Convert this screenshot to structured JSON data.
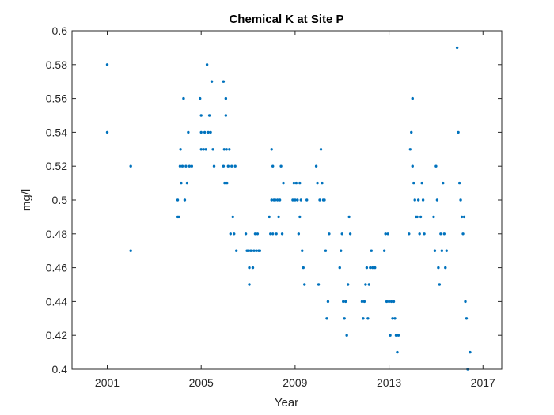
{
  "chart_data": {
    "type": "scatter",
    "title": "Chemical K at Site P",
    "xlabel": "Year",
    "ylabel": "mg/l",
    "xlim": [
      1999.5,
      2017.8
    ],
    "ylim": [
      0.4,
      0.6
    ],
    "xticks": [
      2001,
      2005,
      2009,
      2013,
      2017
    ],
    "yticks": [
      0.4,
      0.42,
      0.44,
      0.46,
      0.48,
      0.5,
      0.52,
      0.54,
      0.56,
      0.58,
      0.6
    ],
    "ytick_labels": [
      "0.4",
      "0.42",
      "0.44",
      "0.46",
      "0.48",
      "0.5",
      "0.52",
      "0.54",
      "0.56",
      "0.58",
      "0.6"
    ],
    "grid": false,
    "marker_color": "#0072BD",
    "series": [
      {
        "points": [
          [
            2001.0,
            0.58
          ],
          [
            2001.0,
            0.54
          ],
          [
            2002.0,
            0.52
          ],
          [
            2002.0,
            0.47
          ],
          [
            2004.0,
            0.5
          ],
          [
            2004.0,
            0.49
          ],
          [
            2004.05,
            0.49
          ],
          [
            2004.1,
            0.52
          ],
          [
            2004.12,
            0.53
          ],
          [
            2004.15,
            0.51
          ],
          [
            2004.2,
            0.52
          ],
          [
            2004.25,
            0.56
          ],
          [
            2004.3,
            0.5
          ],
          [
            2004.35,
            0.52
          ],
          [
            2004.4,
            0.51
          ],
          [
            2004.45,
            0.54
          ],
          [
            2004.5,
            0.52
          ],
          [
            2004.6,
            0.52
          ],
          [
            2004.95,
            0.56
          ],
          [
            2005.0,
            0.55
          ],
          [
            2005.0,
            0.54
          ],
          [
            2005.0,
            0.53
          ],
          [
            2005.1,
            0.53
          ],
          [
            2005.15,
            0.54
          ],
          [
            2005.2,
            0.53
          ],
          [
            2005.25,
            0.58
          ],
          [
            2005.3,
            0.54
          ],
          [
            2005.35,
            0.55
          ],
          [
            2005.4,
            0.54
          ],
          [
            2005.45,
            0.57
          ],
          [
            2005.5,
            0.53
          ],
          [
            2005.55,
            0.52
          ],
          [
            2005.95,
            0.57
          ],
          [
            2005.95,
            0.52
          ],
          [
            2005.98,
            0.53
          ],
          [
            2006.0,
            0.51
          ],
          [
            2006.05,
            0.56
          ],
          [
            2006.05,
            0.55
          ],
          [
            2006.08,
            0.53
          ],
          [
            2006.1,
            0.51
          ],
          [
            2006.15,
            0.52
          ],
          [
            2006.2,
            0.53
          ],
          [
            2006.25,
            0.48
          ],
          [
            2006.3,
            0.52
          ],
          [
            2006.35,
            0.49
          ],
          [
            2006.4,
            0.48
          ],
          [
            2006.45,
            0.52
          ],
          [
            2006.5,
            0.47
          ],
          [
            2006.9,
            0.48
          ],
          [
            2006.95,
            0.47
          ],
          [
            2007.0,
            0.47
          ],
          [
            2007.05,
            0.46
          ],
          [
            2007.05,
            0.45
          ],
          [
            2007.1,
            0.47
          ],
          [
            2007.15,
            0.47
          ],
          [
            2007.2,
            0.46
          ],
          [
            2007.25,
            0.47
          ],
          [
            2007.3,
            0.48
          ],
          [
            2007.35,
            0.47
          ],
          [
            2007.4,
            0.48
          ],
          [
            2007.45,
            0.47
          ],
          [
            2007.5,
            0.47
          ],
          [
            2007.9,
            0.49
          ],
          [
            2007.95,
            0.48
          ],
          [
            2008.0,
            0.53
          ],
          [
            2008.0,
            0.5
          ],
          [
            2008.05,
            0.52
          ],
          [
            2008.05,
            0.48
          ],
          [
            2008.1,
            0.5
          ],
          [
            2008.15,
            0.5
          ],
          [
            2008.2,
            0.48
          ],
          [
            2008.25,
            0.5
          ],
          [
            2008.3,
            0.49
          ],
          [
            2008.35,
            0.5
          ],
          [
            2008.4,
            0.52
          ],
          [
            2008.45,
            0.48
          ],
          [
            2008.5,
            0.51
          ],
          [
            2008.9,
            0.5
          ],
          [
            2008.95,
            0.51
          ],
          [
            2009.0,
            0.5
          ],
          [
            2009.05,
            0.51
          ],
          [
            2009.1,
            0.5
          ],
          [
            2009.15,
            0.48
          ],
          [
            2009.2,
            0.51
          ],
          [
            2009.2,
            0.49
          ],
          [
            2009.25,
            0.5
          ],
          [
            2009.3,
            0.47
          ],
          [
            2009.35,
            0.46
          ],
          [
            2009.4,
            0.45
          ],
          [
            2009.5,
            0.5
          ],
          [
            2009.9,
            0.52
          ],
          [
            2009.95,
            0.51
          ],
          [
            2010.0,
            0.45
          ],
          [
            2010.05,
            0.5
          ],
          [
            2010.1,
            0.53
          ],
          [
            2010.15,
            0.51
          ],
          [
            2010.2,
            0.5
          ],
          [
            2010.25,
            0.5
          ],
          [
            2010.3,
            0.47
          ],
          [
            2010.35,
            0.43
          ],
          [
            2010.4,
            0.44
          ],
          [
            2010.45,
            0.48
          ],
          [
            2010.9,
            0.46
          ],
          [
            2010.95,
            0.47
          ],
          [
            2011.0,
            0.48
          ],
          [
            2011.05,
            0.44
          ],
          [
            2011.1,
            0.43
          ],
          [
            2011.15,
            0.44
          ],
          [
            2011.2,
            0.42
          ],
          [
            2011.25,
            0.45
          ],
          [
            2011.3,
            0.49
          ],
          [
            2011.35,
            0.48
          ],
          [
            2011.85,
            0.44
          ],
          [
            2011.9,
            0.43
          ],
          [
            2011.95,
            0.44
          ],
          [
            2012.0,
            0.45
          ],
          [
            2012.05,
            0.46
          ],
          [
            2012.1,
            0.43
          ],
          [
            2012.15,
            0.45
          ],
          [
            2012.2,
            0.46
          ],
          [
            2012.25,
            0.47
          ],
          [
            2012.3,
            0.46
          ],
          [
            2012.4,
            0.46
          ],
          [
            2012.8,
            0.47
          ],
          [
            2012.85,
            0.48
          ],
          [
            2012.9,
            0.44
          ],
          [
            2012.95,
            0.48
          ],
          [
            2013.0,
            0.44
          ],
          [
            2013.05,
            0.42
          ],
          [
            2013.1,
            0.44
          ],
          [
            2013.15,
            0.43
          ],
          [
            2013.2,
            0.44
          ],
          [
            2013.25,
            0.43
          ],
          [
            2013.3,
            0.42
          ],
          [
            2013.35,
            0.41
          ],
          [
            2013.4,
            0.42
          ],
          [
            2013.85,
            0.48
          ],
          [
            2013.9,
            0.53
          ],
          [
            2013.95,
            0.54
          ],
          [
            2014.0,
            0.56
          ],
          [
            2014.0,
            0.52
          ],
          [
            2014.05,
            0.51
          ],
          [
            2014.1,
            0.5
          ],
          [
            2014.15,
            0.49
          ],
          [
            2014.2,
            0.49
          ],
          [
            2014.25,
            0.5
          ],
          [
            2014.3,
            0.48
          ],
          [
            2014.35,
            0.49
          ],
          [
            2014.4,
            0.51
          ],
          [
            2014.45,
            0.5
          ],
          [
            2014.5,
            0.48
          ],
          [
            2014.9,
            0.49
          ],
          [
            2014.95,
            0.47
          ],
          [
            2015.0,
            0.52
          ],
          [
            2015.05,
            0.5
          ],
          [
            2015.1,
            0.46
          ],
          [
            2015.15,
            0.45
          ],
          [
            2015.2,
            0.48
          ],
          [
            2015.25,
            0.47
          ],
          [
            2015.3,
            0.51
          ],
          [
            2015.35,
            0.48
          ],
          [
            2015.4,
            0.46
          ],
          [
            2015.45,
            0.47
          ],
          [
            2015.9,
            0.59
          ],
          [
            2015.95,
            0.54
          ],
          [
            2016.0,
            0.51
          ],
          [
            2016.05,
            0.5
          ],
          [
            2016.1,
            0.49
          ],
          [
            2016.15,
            0.48
          ],
          [
            2016.2,
            0.49
          ],
          [
            2016.25,
            0.44
          ],
          [
            2016.3,
            0.43
          ],
          [
            2016.35,
            0.4
          ],
          [
            2016.45,
            0.41
          ]
        ]
      }
    ]
  }
}
